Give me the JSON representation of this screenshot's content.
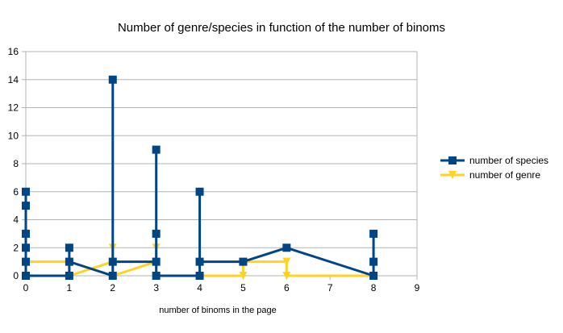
{
  "chart_data": {
    "type": "line",
    "title": "Number of genre/species in function of the number of binoms",
    "xlabel": "number of binoms in the page",
    "ylabel": "",
    "xlim": [
      0,
      9
    ],
    "ylim": [
      0,
      16
    ],
    "x_ticks": [
      0,
      1,
      2,
      3,
      4,
      5,
      6,
      7,
      8,
      9
    ],
    "y_ticks": [
      0,
      2,
      4,
      6,
      8,
      10,
      12,
      14,
      16
    ],
    "grid": "horizontal",
    "legend_position": "right",
    "series": [
      {
        "name": "number of genre",
        "color": "#ffd320",
        "marker": "triangle-down",
        "x": [
          0,
          0,
          0,
          0,
          0,
          1,
          1,
          1,
          2,
          2,
          2,
          3,
          3,
          3,
          4,
          4,
          5,
          5,
          6,
          6,
          8,
          8,
          8
        ],
        "y": [
          0,
          1,
          1,
          1,
          1,
          1,
          1,
          0,
          1,
          2,
          0,
          1,
          2,
          0,
          0,
          0,
          0,
          1,
          1,
          0,
          0,
          0,
          0
        ]
      },
      {
        "name": "number of species",
        "color": "#004586",
        "marker": "square",
        "x": [
          0,
          0,
          0,
          0,
          0,
          0,
          1,
          1,
          1,
          2,
          2,
          2,
          3,
          3,
          3,
          3,
          4,
          4,
          4,
          5,
          6,
          8,
          8,
          8
        ],
        "y": [
          6,
          5,
          3,
          2,
          1,
          0,
          0,
          2,
          1,
          0,
          14,
          1,
          1,
          9,
          3,
          0,
          0,
          6,
          1,
          1,
          2,
          0,
          1,
          3
        ]
      }
    ]
  }
}
